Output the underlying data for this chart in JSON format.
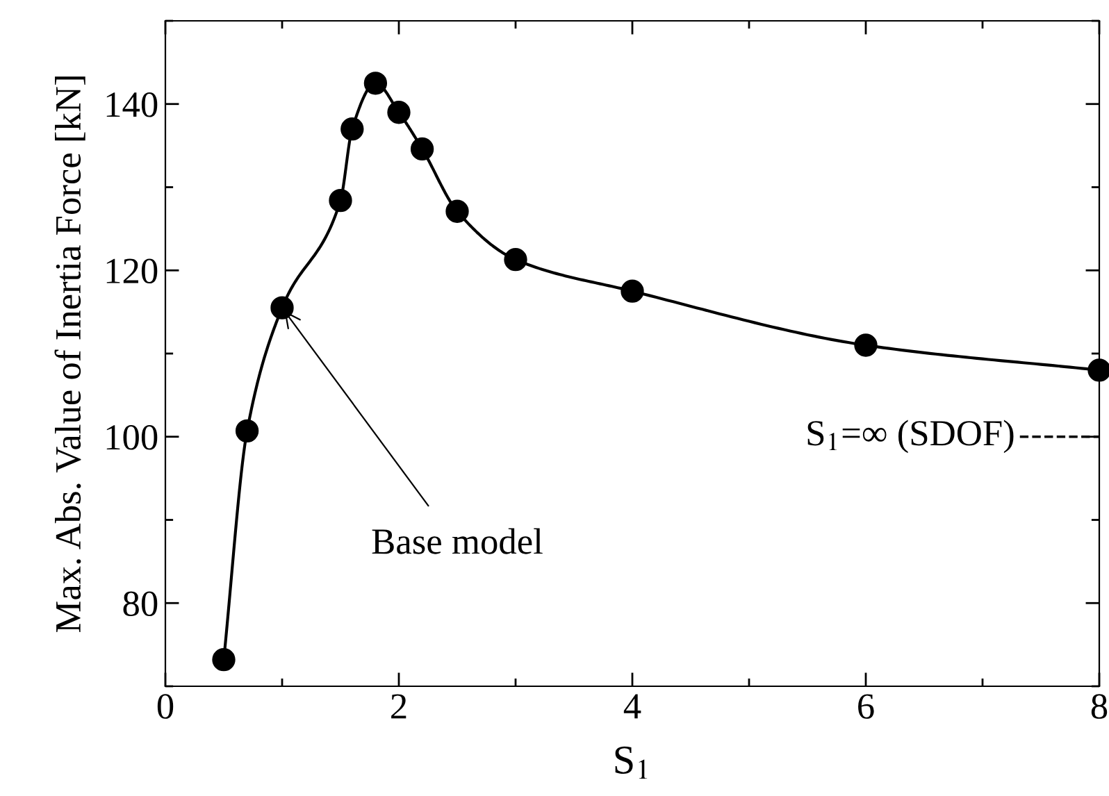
{
  "chart_data": {
    "type": "line",
    "xlabel": "S$_{1}$",
    "ylabel": "Max. Abs. Value of Inertia Force [kN]",
    "series": [
      {
        "color": "#000000",
        "x": [
          0.5,
          0.7,
          1,
          1.5,
          1.6,
          1.8,
          2,
          2.2,
          2.5,
          3,
          4,
          6,
          8
        ],
        "values": [
          73.2,
          100.7,
          115.5,
          128.4,
          137,
          142.5,
          139,
          134.6,
          127.1,
          121.3,
          117.5,
          111,
          108
        ]
      }
    ],
    "xlim": [
      0,
      8
    ],
    "ylim": [
      70,
      150
    ],
    "xticks": [
      0,
      {
        "value": 1,
        "label": null
      },
      2,
      {
        "value": 3,
        "label": null
      },
      4,
      {
        "value": 5,
        "label": null
      },
      6,
      {
        "value": 7,
        "label": null
      },
      8
    ],
    "yticks": [
      {
        "value": 70,
        "label": null
      },
      80,
      {
        "value": 90,
        "label": null
      },
      100,
      {
        "value": 110,
        "label": null
      },
      120,
      {
        "value": 130,
        "label": null
      },
      140,
      {
        "value": 150,
        "label": null
      }
    ],
    "marker": "circle",
    "line_style": "solid",
    "grid": false,
    "legend": false,
    "ref_lines": [
      {
        "axis": "y",
        "value": 100,
        "label": "S$_{1}$=∞ (SDOF)",
        "color": "#000000",
        "line_style": "dashed"
      }
    ],
    "annotations": [
      {
        "text": "Base model",
        "x": 1,
        "y": 115.5
      }
    ]
  }
}
